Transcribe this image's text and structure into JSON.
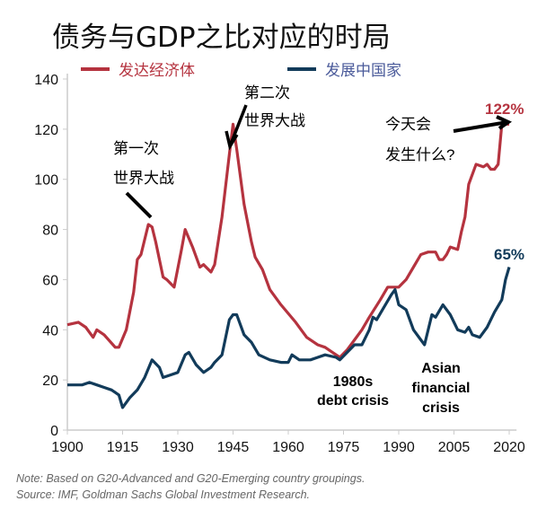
{
  "colors": {
    "advanced": "#b5333f",
    "emerging": "#123b5a",
    "emerging_legend_text": "#4a5a9a"
  },
  "chart_data": {
    "type": "line",
    "title": "债务与GDP之比对应的时局",
    "xlabel": "",
    "ylabel": "",
    "xlim": [
      1900,
      2022
    ],
    "ylim": [
      0,
      140
    ],
    "xticks": [
      1900,
      1915,
      1930,
      1945,
      1960,
      1975,
      1990,
      2005,
      2020
    ],
    "yticks": [
      0,
      20,
      40,
      60,
      80,
      100,
      120,
      140
    ],
    "grid": false,
    "legend": "top",
    "series": [
      {
        "name": "发达经济体",
        "x": [
          1900,
          1903,
          1905,
          1907,
          1908,
          1910,
          1913,
          1914,
          1916,
          1918,
          1919,
          1920,
          1922,
          1923,
          1924,
          1926,
          1927,
          1929,
          1931,
          1932,
          1934,
          1936,
          1937,
          1939,
          1940,
          1942,
          1944,
          1945,
          1946,
          1948,
          1950,
          1951,
          1953,
          1955,
          1958,
          1962,
          1965,
          1968,
          1970,
          1972,
          1974,
          1976,
          1978,
          1980,
          1982,
          1985,
          1987,
          1990,
          1992,
          1994,
          1996,
          1998,
          2000,
          2001,
          2002,
          2003,
          2004,
          2006,
          2007,
          2008,
          2009,
          2011,
          2013,
          2014,
          2015,
          2016,
          2017,
          2018,
          2020
        ],
        "y": [
          42,
          43,
          41,
          37,
          40,
          38,
          33,
          33,
          40,
          55,
          68,
          70,
          82,
          81,
          75,
          61,
          60,
          57,
          72,
          80,
          73,
          65,
          66,
          63,
          66,
          85,
          110,
          122,
          112,
          90,
          75,
          69,
          64,
          56,
          50,
          43,
          37,
          34,
          33,
          31,
          29,
          32,
          36,
          40,
          45,
          52,
          57,
          57,
          60,
          65,
          70,
          71,
          71,
          68,
          68,
          70,
          73,
          72,
          79,
          85,
          98,
          106,
          105,
          106,
          104,
          104,
          106,
          122,
          122
        ]
      },
      {
        "name": "发展中国家",
        "x": [
          1900,
          1902,
          1904,
          1906,
          1908,
          1910,
          1912,
          1913,
          1914,
          1915,
          1917,
          1919,
          1921,
          1923,
          1925,
          1926,
          1928,
          1930,
          1932,
          1933,
          1935,
          1937,
          1939,
          1940,
          1942,
          1944,
          1945,
          1946,
          1948,
          1950,
          1952,
          1955,
          1958,
          1960,
          1961,
          1963,
          1966,
          1968,
          1970,
          1973,
          1974,
          1976,
          1978,
          1980,
          1982,
          1983,
          1984,
          1986,
          1988,
          1989,
          1990,
          1992,
          1994,
          1996,
          1997,
          1998,
          1999,
          2000,
          2002,
          2004,
          2006,
          2008,
          2009,
          2010,
          2012,
          2014,
          2016,
          2018,
          2019,
          2020
        ],
        "y": [
          18,
          18,
          18,
          19,
          18,
          17,
          16,
          15,
          14,
          9,
          13,
          16,
          21,
          28,
          25,
          21,
          22,
          23,
          30,
          31,
          26,
          23,
          25,
          27,
          30,
          44,
          46,
          46,
          38,
          35,
          30,
          28,
          27,
          27,
          30,
          28,
          28,
          29,
          30,
          29,
          28,
          31,
          34,
          34,
          40,
          45,
          44,
          49,
          54,
          56,
          50,
          48,
          40,
          36,
          34,
          40,
          46,
          45,
          50,
          46,
          40,
          39,
          41,
          38,
          37,
          41,
          47,
          52,
          60,
          65
        ]
      }
    ],
    "annotations": [
      {
        "text_lines": [
          "第一次",
          "世界大战"
        ]
      },
      {
        "text_lines": [
          "第二次",
          "世界大战"
        ]
      },
      {
        "text_lines": [
          "今天会",
          "发生什么?"
        ]
      },
      {
        "text": "122%"
      },
      {
        "text": "65%"
      },
      {
        "text_lines": [
          "1980s",
          "debt crisis"
        ]
      },
      {
        "text_lines": [
          "Asian",
          "financial",
          "crisis"
        ]
      }
    ]
  },
  "notes": {
    "note": "Note: Based on G20-Advanced and G20-Emerging country groupings.",
    "source": "Source: IMF, Goldman Sachs Global Investment Research."
  }
}
